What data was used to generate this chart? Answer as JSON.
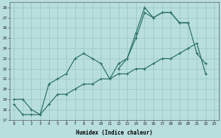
{
  "xlabel": "Humidex (Indice chaleur)",
  "x": [
    0,
    1,
    2,
    3,
    4,
    5,
    6,
    7,
    8,
    9,
    10,
    11,
    12,
    13,
    14,
    15,
    16,
    17,
    18,
    19,
    20,
    21,
    22,
    23
  ],
  "line1": [
    19,
    19,
    18,
    17.5,
    20.5,
    21,
    21.5,
    23,
    23.5,
    23,
    22.5,
    21,
    22.5,
    23,
    25.5,
    28,
    27,
    27.5,
    27.5,
    26.5,
    26.5,
    23.5,
    22.5,
    null
  ],
  "line2": [
    null,
    null,
    null,
    null,
    null,
    null,
    null,
    null,
    null,
    null,
    null,
    null,
    22,
    23,
    25,
    27.5,
    27,
    27.5,
    27.5,
    26.5,
    26.5,
    null,
    null,
    null
  ],
  "line3": [
    18.5,
    17.5,
    17.5,
    17.5,
    18.5,
    19.5,
    19.5,
    20,
    20.5,
    20.5,
    21,
    21,
    21.5,
    21.5,
    22,
    22,
    22.5,
    23,
    23,
    23.5,
    24,
    24.5,
    21.5,
    null
  ],
  "line_color": "#2a7060",
  "bg_color": "#b8dede",
  "grid_color": "#98c4c4",
  "ylim": [
    17,
    28.5
  ],
  "yticks": [
    17,
    18,
    19,
    20,
    21,
    22,
    23,
    24,
    25,
    26,
    27,
    28
  ],
  "figsize": [
    3.2,
    2.0
  ],
  "dpi": 100
}
